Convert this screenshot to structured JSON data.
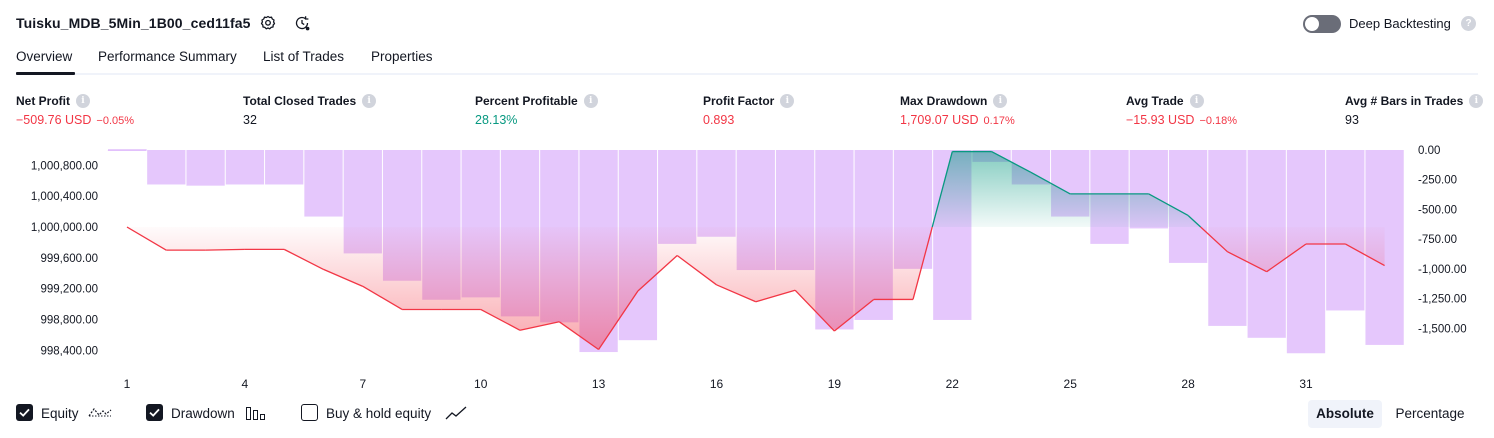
{
  "header": {
    "strategy_name": "Tuisku_MDB_5Min_1B00_ced11fa5",
    "deep_backtesting_label": "Deep Backtesting",
    "deep_backtesting_enabled": false,
    "help_glyph": "?"
  },
  "tabs": [
    {
      "label": "Overview",
      "active": true
    },
    {
      "label": "Performance Summary",
      "active": false
    },
    {
      "label": "List of Trades",
      "active": false
    },
    {
      "label": "Properties",
      "active": false
    }
  ],
  "metrics": [
    {
      "label": "Net Profit",
      "value": "−509.76 USD",
      "pct": "−0.05%",
      "tone": "red"
    },
    {
      "label": "Total Closed Trades",
      "value": "32",
      "pct": "",
      "tone": "dark"
    },
    {
      "label": "Percent Profitable",
      "value": "28.13%",
      "pct": "",
      "tone": "green"
    },
    {
      "label": "Profit Factor",
      "value": "0.893",
      "pct": "",
      "tone": "red"
    },
    {
      "label": "Max Drawdown",
      "value": "1,709.07 USD",
      "pct": "0.17%",
      "tone": "red"
    },
    {
      "label": "Avg Trade",
      "value": "−15.93 USD",
      "pct": "−0.18%",
      "tone": "red"
    },
    {
      "label": "Avg # Bars in Trades",
      "value": "93",
      "pct": "",
      "tone": "dark"
    }
  ],
  "info_glyph": "i",
  "chart_data": {
    "type": "line",
    "title": "",
    "equity_axis": {
      "min": 998300,
      "max": 1001000,
      "ticks": [
        "1,000,800.00",
        "1,000,400.00",
        "1,000,000.00",
        "999,600.00",
        "999,200.00",
        "998,800.00",
        "998,400.00"
      ],
      "tick_values": [
        1000800,
        1000400,
        1000000,
        999600,
        999200,
        998800,
        998400
      ]
    },
    "drawdown_axis": {
      "min": -1750,
      "max": 0,
      "ticks": [
        "0.00",
        "-250.00",
        "-500.00",
        "-750.00",
        "-1,000.00",
        "-1,250.00",
        "-1,500.00"
      ],
      "tick_values": [
        0,
        -250,
        -500,
        -750,
        -1000,
        -1250,
        -1500
      ]
    },
    "x_ticks": [
      "1",
      "4",
      "7",
      "10",
      "13",
      "16",
      "19",
      "22",
      "25",
      "28",
      "31"
    ],
    "x_tick_values": [
      1,
      4,
      7,
      10,
      13,
      16,
      19,
      22,
      25,
      28,
      31
    ],
    "baseline_equity": 1000000,
    "series": [
      {
        "name": "Equity",
        "x": [
          1,
          2,
          3,
          4,
          5,
          6,
          7,
          8,
          9,
          10,
          11,
          12,
          13,
          14,
          15,
          16,
          17,
          18,
          19,
          20,
          21,
          22,
          23,
          24,
          25,
          26,
          27,
          28,
          29,
          30,
          31,
          32,
          33
        ],
        "values": [
          1000000,
          999700,
          999700,
          999710,
          999710,
          999450,
          999230,
          998930,
          998930,
          998930,
          998660,
          998770,
          998410,
          999170,
          999630,
          999250,
          999030,
          999180,
          998650,
          999060,
          999060,
          1000980,
          1000980,
          1000710,
          1000430,
          1000430,
          1000430,
          1000150,
          999680,
          999420,
          999780,
          999780,
          999500
        ],
        "color": "#f23645",
        "positive_color": "#089981"
      },
      {
        "name": "Drawdown",
        "x": [
          1,
          2,
          3,
          4,
          5,
          6,
          7,
          8,
          9,
          10,
          11,
          12,
          13,
          14,
          15,
          16,
          17,
          18,
          19,
          20,
          21,
          22,
          23,
          24,
          25,
          26,
          27,
          28,
          29,
          30,
          31,
          32,
          33
        ],
        "values": [
          0,
          -290,
          -300,
          -290,
          -290,
          -560,
          -870,
          -1100,
          -1260,
          -1240,
          -1400,
          -1450,
          -1700,
          -1600,
          -790,
          -730,
          -1010,
          -1010,
          -1510,
          -1430,
          -1000,
          -1430,
          -100,
          -290,
          -560,
          -790,
          -660,
          -950,
          -1480,
          -1580,
          -1710,
          -1350,
          -1640
        ],
        "color": "#e1bdfc"
      }
    ],
    "legend": [
      {
        "label": "Equity",
        "checked": true
      },
      {
        "label": "Drawdown",
        "checked": true
      },
      {
        "label": "Buy & hold equity",
        "checked": false
      }
    ]
  },
  "view_modes": {
    "absolute": "Absolute",
    "percentage": "Percentage",
    "selected": "absolute"
  }
}
